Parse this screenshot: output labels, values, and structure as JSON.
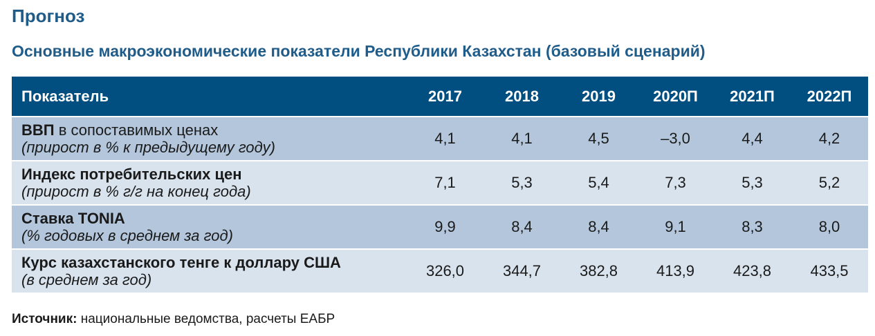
{
  "section_title": "Прогноз",
  "table_title": "Основные макроэкономические показатели Республики Казахстан (базовый сценарий)",
  "header": {
    "indicator": "Показатель",
    "years": [
      "2017",
      "2018",
      "2019",
      "2020П",
      "2021П",
      "2022П"
    ]
  },
  "rows": [
    {
      "bold": "ВВП",
      "rest": " в сопоставимых ценах",
      "sub": "(прирост в % к предыдущему году)",
      "values": [
        "4,1",
        "4,1",
        "4,5",
        "–3,0",
        "4,4",
        "4,2"
      ]
    },
    {
      "bold": "Индекс потребительских цен",
      "rest": "",
      "sub": "(прирост в % г/г на конец года)",
      "values": [
        "7,1",
        "5,3",
        "5,4",
        "7,3",
        "5,3",
        "5,2"
      ]
    },
    {
      "bold": "Ставка TONIA",
      "rest": "",
      "sub": "(% годовых в среднем за год)",
      "values": [
        "9,9",
        "8,4",
        "8,4",
        "9,1",
        "8,3",
        "8,0"
      ]
    },
    {
      "bold": "Курс казахстанского тенге к доллару США",
      "rest": "",
      "sub": "(в среднем за год)",
      "values": [
        "326,0",
        "344,7",
        "382,8",
        "413,9",
        "423,8",
        "433,5"
      ]
    }
  ],
  "source": {
    "label": "Источник:",
    "text": " национальные ведомства, расчеты ЕАБР"
  },
  "colors": {
    "title": "#1f5c8a",
    "header_bg": "#004f80",
    "row_dark": "#b3c6db",
    "row_light": "#d9e3ee"
  }
}
